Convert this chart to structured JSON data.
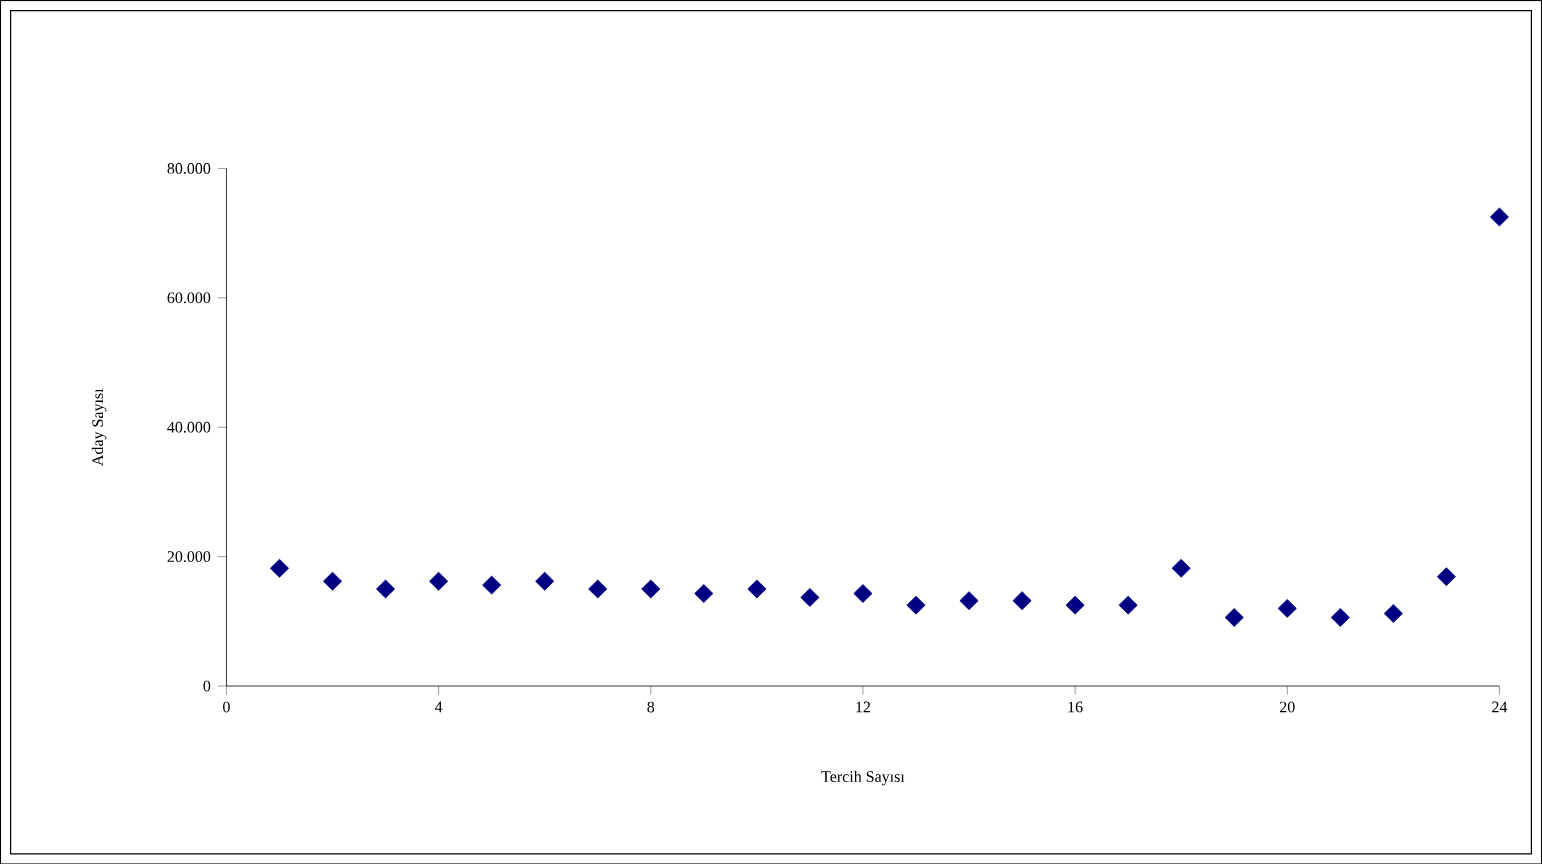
{
  "chart_data": {
    "type": "scatter",
    "xlabel": "Tercih Sayısı",
    "ylabel": "Aday Sayısı",
    "x": [
      1,
      2,
      3,
      4,
      5,
      6,
      7,
      8,
      9,
      10,
      11,
      12,
      13,
      14,
      15,
      16,
      17,
      18,
      19,
      20,
      21,
      22,
      23,
      24
    ],
    "values": [
      18200,
      16200,
      15000,
      16200,
      15600,
      16200,
      15000,
      15000,
      14300,
      15000,
      13700,
      14300,
      12500,
      13200,
      13200,
      12500,
      12500,
      18200,
      10600,
      12000,
      10600,
      11200,
      16900,
      72500
    ],
    "color": "#000080",
    "marker": "diamond",
    "grid": false,
    "xlim": [
      0,
      24
    ],
    "xticks": [
      0,
      4,
      8,
      12,
      16,
      20,
      24
    ],
    "ylim": [
      0,
      80000
    ],
    "yticks": [
      0,
      {
        "value": 20000,
        "label": "20.000"
      },
      {
        "value": 40000,
        "label": "40.000"
      },
      {
        "value": 60000,
        "label": "60.000"
      },
      {
        "value": 80000,
        "label": "80.000"
      }
    ]
  }
}
